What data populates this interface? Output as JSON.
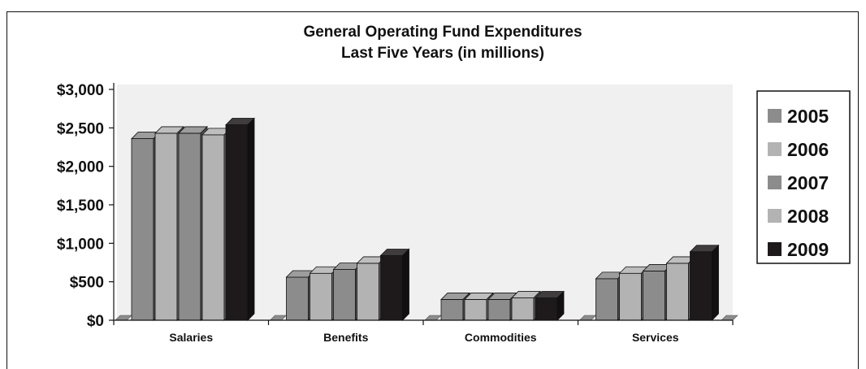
{
  "chart_data": {
    "type": "bar",
    "title": "General Operating Fund Expenditures",
    "subtitle": "Last Five Years (in millions)",
    "categories": [
      "Salaries",
      "Benefits",
      "Commodities",
      "Services"
    ],
    "series": [
      {
        "name": "2005",
        "values": [
          2360,
          560,
          270,
          540
        ]
      },
      {
        "name": "2006",
        "values": [
          2430,
          610,
          270,
          610
        ]
      },
      {
        "name": "2007",
        "values": [
          2430,
          660,
          270,
          640
        ]
      },
      {
        "name": "2008",
        "values": [
          2410,
          740,
          290,
          740
        ]
      },
      {
        "name": "2009",
        "values": [
          2540,
          840,
          290,
          890
        ]
      }
    ],
    "ylim": [
      0,
      3000
    ],
    "yticks": [
      0,
      500,
      1000,
      1500,
      2000,
      2500,
      3000
    ],
    "ytick_labels": [
      "$0",
      "$500",
      "$1,000",
      "$1,500",
      "$2,000",
      "$2,500",
      "$3,000"
    ],
    "legend_position": "right",
    "grid": false,
    "colors": {
      "2005": "#8c8c8c",
      "2006": "#b3b3b3",
      "2007": "#8c8c8c",
      "2008": "#b3b3b3",
      "2009": "#1e1a1b",
      "plot_bg": "#f0f0f0"
    }
  }
}
